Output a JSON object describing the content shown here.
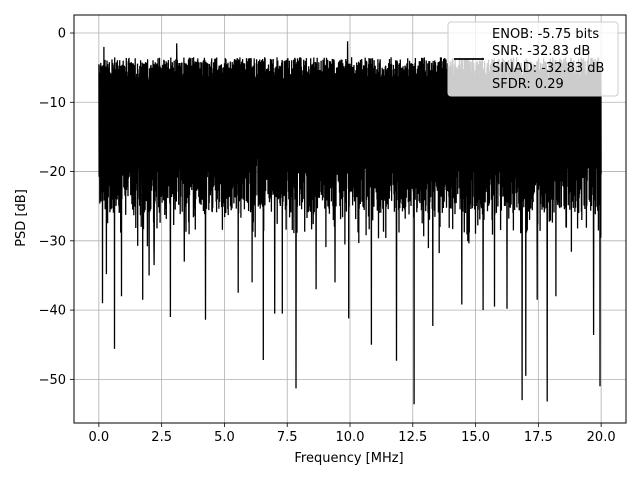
{
  "chart_data": {
    "type": "line",
    "title": "",
    "xlabel": "Frequency [MHz]",
    "ylabel": "PSD [dB]",
    "xlim": [
      -0.99,
      20.99
    ],
    "ylim": [
      -56.3,
      2.6
    ],
    "x_ticks": [
      0.0,
      2.5,
      5.0,
      7.5,
      10.0,
      12.5,
      15.0,
      17.5,
      20.0
    ],
    "x_tick_labels": [
      "0.0",
      "2.5",
      "5.0",
      "7.5",
      "10.0",
      "12.5",
      "15.0",
      "17.5",
      "20.0"
    ],
    "y_ticks": [
      0,
      -10,
      -20,
      -30,
      -40,
      -50
    ],
    "y_tick_labels": [
      "0",
      "−10",
      "−20",
      "−30",
      "−40",
      "−50"
    ],
    "grid": true,
    "legend": {
      "placement": "top-right",
      "entries": [
        "ENOB: -5.75 bits",
        "SNR: -32.83 dB",
        "SINAD: -32.83 dB",
        "SFDR: 0.29"
      ]
    },
    "series": [
      {
        "color": "#000000",
        "note_x_range": [
          0.0,
          20.0
        ],
        "typical_upper": -3.5,
        "typical_lower": -26.0,
        "peaks": [
          {
            "x": 0.0,
            "y": -4.5
          },
          {
            "x": 0.2,
            "y": -2.0
          },
          {
            "x": 3.1,
            "y": -1.5
          },
          {
            "x": 9.9,
            "y": -1.2
          },
          {
            "x": 19.5,
            "y": -2.0
          }
        ],
        "dips": [
          {
            "x": 0.15,
            "y": -39.0
          },
          {
            "x": 0.3,
            "y": -34.8
          },
          {
            "x": 0.62,
            "y": -45.6
          },
          {
            "x": 0.9,
            "y": -38.0
          },
          {
            "x": 1.75,
            "y": -38.5
          },
          {
            "x": 2.0,
            "y": -35.0
          },
          {
            "x": 2.2,
            "y": -33.5
          },
          {
            "x": 2.85,
            "y": -41.0
          },
          {
            "x": 3.4,
            "y": -33.0
          },
          {
            "x": 4.25,
            "y": -41.4
          },
          {
            "x": 5.55,
            "y": -37.5
          },
          {
            "x": 6.1,
            "y": -36.0
          },
          {
            "x": 6.55,
            "y": -47.2
          },
          {
            "x": 7.0,
            "y": -40.5
          },
          {
            "x": 7.3,
            "y": -40.5
          },
          {
            "x": 7.85,
            "y": -51.3
          },
          {
            "x": 8.65,
            "y": -37.0
          },
          {
            "x": 9.4,
            "y": -36.0
          },
          {
            "x": 9.95,
            "y": -41.2
          },
          {
            "x": 10.85,
            "y": -45.0
          },
          {
            "x": 11.85,
            "y": -47.3
          },
          {
            "x": 12.55,
            "y": -53.6
          },
          {
            "x": 13.3,
            "y": -42.3
          },
          {
            "x": 14.45,
            "y": -39.2
          },
          {
            "x": 15.3,
            "y": -40.0
          },
          {
            "x": 15.75,
            "y": -39.5
          },
          {
            "x": 16.25,
            "y": -39.8
          },
          {
            "x": 16.85,
            "y": -53.0
          },
          {
            "x": 17.0,
            "y": -49.5
          },
          {
            "x": 17.45,
            "y": -38.5
          },
          {
            "x": 17.85,
            "y": -53.2
          },
          {
            "x": 18.2,
            "y": -38.0
          },
          {
            "x": 19.7,
            "y": -43.6
          },
          {
            "x": 19.95,
            "y": -51.0
          }
        ]
      }
    ]
  }
}
